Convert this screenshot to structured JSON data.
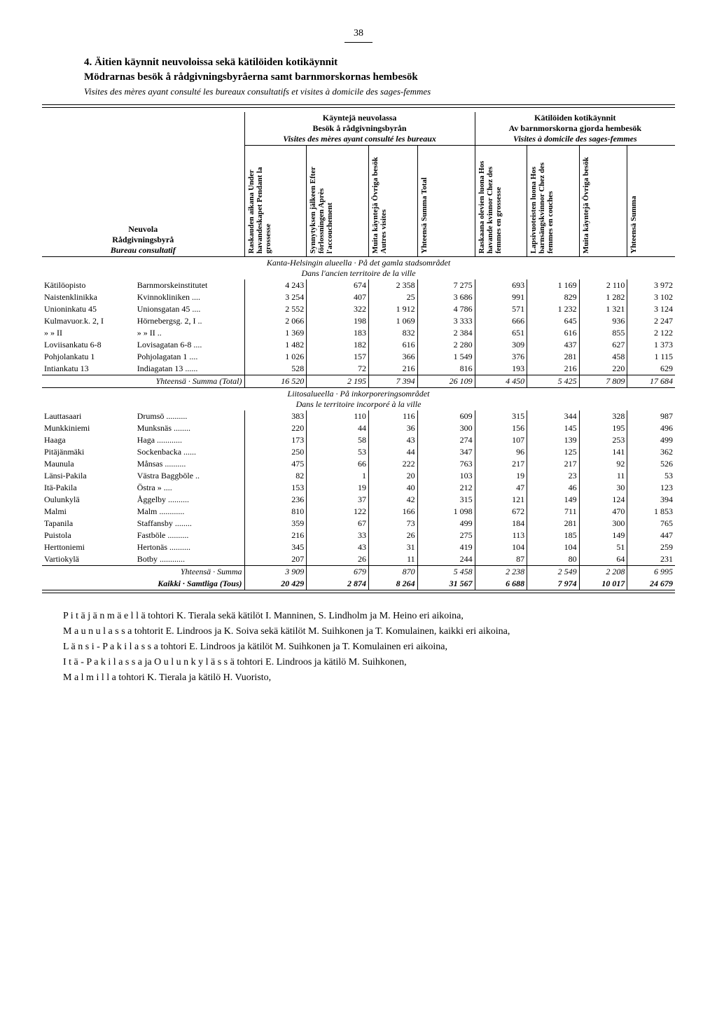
{
  "pageNumber": "38",
  "heading": "4. Äitien käynnit neuvoloissa sekä kätilöiden kotikäynnit",
  "subheading": "Mödrarnas besök å rådgivningsbyråerna samt barnmorskornas hembesök",
  "subheadingItalic": "Visites des mères ayant consulté les bureaux consultatifs et visites à domicile des sages-femmes",
  "headerGroups": {
    "left": {
      "l1": "Neuvola",
      "l2": "Rådgivningsbyrå",
      "l3": "Bureau consultatif"
    },
    "visits": {
      "l1": "Käyntejä neuvolassa",
      "l2": "Besök å rådgivningsbyrån",
      "l3": "Visites des mères ayant consulté les bureaux"
    },
    "home": {
      "l1": "Kätilöiden kotikäynnit",
      "l2": "Av barnmorskorna gjorda hembesök",
      "l3": "Visites à domicile des sages-femmes"
    }
  },
  "cols": {
    "c1": "Raskauden aikana\nUnder havandeskapet\nPendant la grossesse",
    "c2": "Synnytyksen jälkeen\nEfter förlossningen\nAprès l'accouchement",
    "c3": "Muita käyntejä\nÖvriga besök\nAutres visites",
    "c4": "Yhteensä\nSumma\nTotal",
    "c5": "Raskaana olevien luona\nHos havande kvinnor\nChez des femmes en grossesse",
    "c6": "Lapsivuoteisten luona\nHos barnsängskvinnor\nChez des femmes en couches",
    "c7": "Muita käyntejä\nÖvriga besök",
    "c8": "Yhteensä\nSumma"
  },
  "section1": {
    "title": "Kanta-Helsingin alueella · På det gamla stadsområdet",
    "subtitle": "Dans l'ancien territoire de la ville"
  },
  "section2": {
    "title": "Liitosalueella · På inkorporeringsområdet",
    "subtitle": "Dans le territoire incorporé à la ville"
  },
  "rows1": [
    {
      "a": "Kätilöopisto",
      "b": "Barnmorskeinstitutet",
      "v": [
        "4 243",
        "674",
        "2 358",
        "7 275",
        "693",
        "1 169",
        "2 110",
        "3 972"
      ]
    },
    {
      "a": "Naistenklinikka",
      "b": "Kvinnokliniken ....",
      "v": [
        "3 254",
        "407",
        "25",
        "3 686",
        "991",
        "829",
        "1 282",
        "3 102"
      ]
    },
    {
      "a": "Unioninkatu 45",
      "b": "Unionsgatan 45 ....",
      "v": [
        "2 552",
        "322",
        "1 912",
        "4 786",
        "571",
        "1 232",
        "1 321",
        "3 124"
      ]
    },
    {
      "a": "Kulmavuor.k. 2, I",
      "b": "Hörnebergsg. 2, I ..",
      "v": [
        "2 066",
        "198",
        "1 069",
        "3 333",
        "666",
        "645",
        "936",
        "2 247"
      ]
    },
    {
      "a": "»        » II",
      "b": "»        » II ..",
      "v": [
        "1 369",
        "183",
        "832",
        "2 384",
        "651",
        "616",
        "855",
        "2 122"
      ]
    },
    {
      "a": "Loviisankatu 6-8",
      "b": "Lovisagatan 6-8 ....",
      "v": [
        "1 482",
        "182",
        "616",
        "2 280",
        "309",
        "437",
        "627",
        "1 373"
      ]
    },
    {
      "a": "Pohjolankatu 1",
      "b": "Pohjolagatan 1 ....",
      "v": [
        "1 026",
        "157",
        "366",
        "1 549",
        "376",
        "281",
        "458",
        "1 115"
      ]
    },
    {
      "a": "Intiankatu 13",
      "b": "Indiagatan 13 ......",
      "v": [
        "528",
        "72",
        "216",
        "816",
        "193",
        "216",
        "220",
        "629"
      ]
    }
  ],
  "total1": {
    "label": "Yhteensä · Summa (Total)",
    "v": [
      "16 520",
      "2 195",
      "7 394",
      "26 109",
      "4 450",
      "5 425",
      "7 809",
      "17 684"
    ]
  },
  "rows2": [
    {
      "a": "Lauttasaari",
      "b": "Drumsö ..........",
      "v": [
        "383",
        "110",
        "116",
        "609",
        "315",
        "344",
        "328",
        "987"
      ]
    },
    {
      "a": "Munkkiniemi",
      "b": "Munksnäs ........",
      "v": [
        "220",
        "44",
        "36",
        "300",
        "156",
        "145",
        "195",
        "496"
      ]
    },
    {
      "a": "Haaga",
      "b": "Haga ............",
      "v": [
        "173",
        "58",
        "43",
        "274",
        "107",
        "139",
        "253",
        "499"
      ]
    },
    {
      "a": "Pitäjänmäki",
      "b": "Sockenbacka ......",
      "v": [
        "250",
        "53",
        "44",
        "347",
        "96",
        "125",
        "141",
        "362"
      ]
    },
    {
      "a": "Maunula",
      "b": "Månsas ..........",
      "v": [
        "475",
        "66",
        "222",
        "763",
        "217",
        "217",
        "92",
        "526"
      ]
    },
    {
      "a": "Länsi-Pakila",
      "b": "Västra Baggböle ..",
      "v": [
        "82",
        "1",
        "20",
        "103",
        "19",
        "23",
        "11",
        "53"
      ]
    },
    {
      "a": "Itä-Pakila",
      "b": "Östra    »    ....",
      "v": [
        "153",
        "19",
        "40",
        "212",
        "47",
        "46",
        "30",
        "123"
      ]
    },
    {
      "a": "Oulunkylä",
      "b": "Åggelby ..........",
      "v": [
        "236",
        "37",
        "42",
        "315",
        "121",
        "149",
        "124",
        "394"
      ]
    },
    {
      "a": "Malmi",
      "b": "Malm ............",
      "v": [
        "810",
        "122",
        "166",
        "1 098",
        "672",
        "711",
        "470",
        "1 853"
      ]
    },
    {
      "a": "Tapanila",
      "b": "Staffansby ........",
      "v": [
        "359",
        "67",
        "73",
        "499",
        "184",
        "281",
        "300",
        "765"
      ]
    },
    {
      "a": "Puistola",
      "b": "Fastböle ..........",
      "v": [
        "216",
        "33",
        "26",
        "275",
        "113",
        "185",
        "149",
        "447"
      ]
    },
    {
      "a": "Herttoniemi",
      "b": "Hertonäs ..........",
      "v": [
        "345",
        "43",
        "31",
        "419",
        "104",
        "104",
        "51",
        "259"
      ]
    },
    {
      "a": "Vartiokylä",
      "b": "Botby ............",
      "v": [
        "207",
        "26",
        "11",
        "244",
        "87",
        "80",
        "64",
        "231"
      ]
    }
  ],
  "total2": {
    "label": "Yhteensä · Summa",
    "v": [
      "3 909",
      "679",
      "870",
      "5 458",
      "2 238",
      "2 549",
      "2 208",
      "6 995"
    ]
  },
  "grand": {
    "label": "Kaikki · Samtliga (Tous)",
    "v": [
      "20 429",
      "2 874",
      "8 264",
      "31 567",
      "6 688",
      "7 974",
      "10 017",
      "24 679"
    ]
  },
  "footer": {
    "p1": "P i t ä j ä n m ä e l l ä  tohtori K. Tierala sekä kätilöt I. Manninen, S. Lindholm ja M. Heino eri aikoina,",
    "p2": "M a u n u l a s s a  tohtorit E. Lindroos ja K. Soiva sekä kätilöt M. Suihkonen ja T. Komulainen, kaikki eri aikoina,",
    "p3": "L ä n s i - P a k i l a s s a  tohtori E. Lindroos ja kätilöt M. Suihkonen ja T. Komulainen eri aikoina,",
    "p4": "I t ä - P a k i l a s s a  ja  O u l u n k y l ä s s ä  tohtori E. Lindroos ja kätilö M. Suihkonen,",
    "p5": "M a l m i l l a  tohtori K. Tierala ja kätilö H. Vuoristo,"
  }
}
